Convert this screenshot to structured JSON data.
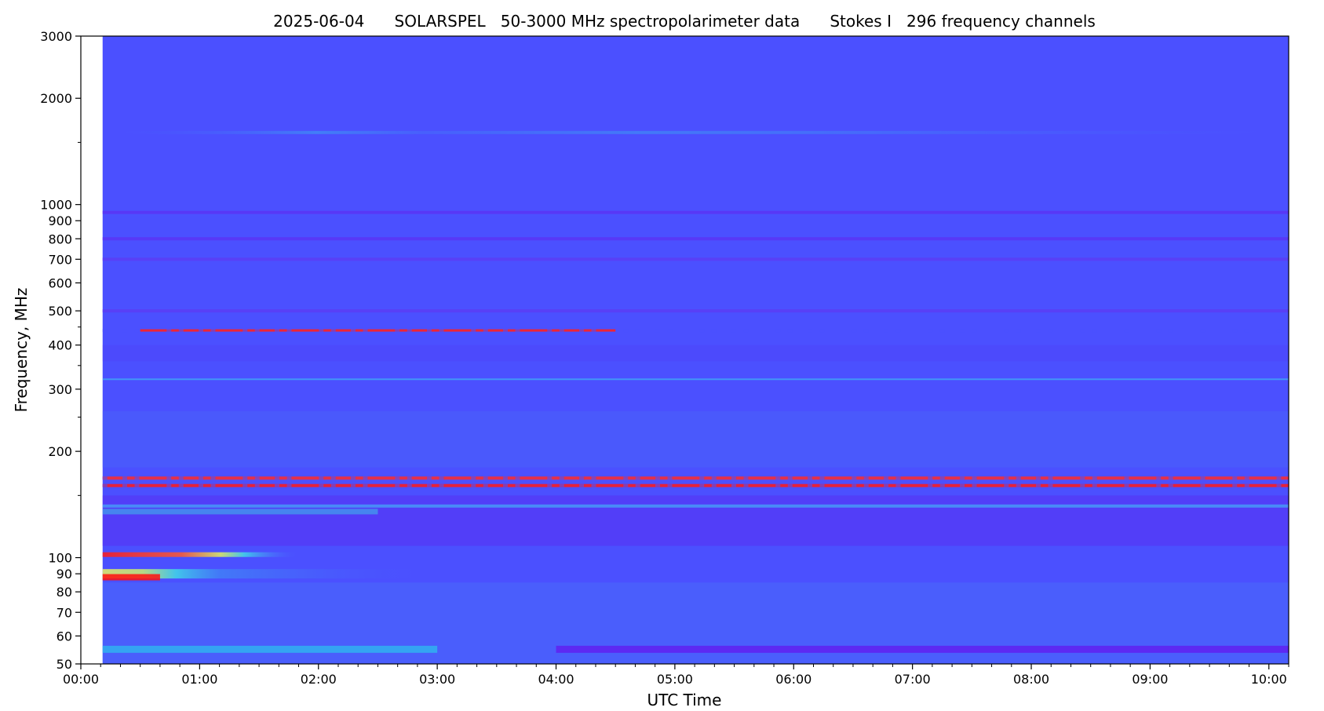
{
  "chart_data": {
    "type": "heatmap",
    "title": "2025-06-04      SOLARSPEL   50-3000 MHz spectropolarimeter data      Stokes I   296 frequency channels",
    "xlabel": "UTC Time",
    "ylabel": "Frequency, MHz",
    "x_range": [
      "00:00",
      "10:10"
    ],
    "y_range": [
      50,
      3000
    ],
    "y_scale": "log",
    "x_ticks": [
      "00:00",
      "01:00",
      "02:00",
      "03:00",
      "04:00",
      "05:00",
      "06:00",
      "07:00",
      "08:00",
      "09:00",
      "10:00"
    ],
    "y_ticks": [
      50,
      60,
      70,
      80,
      90,
      100,
      200,
      300,
      400,
      500,
      600,
      700,
      800,
      900,
      1000,
      2000,
      3000
    ],
    "y_tick_labels": [
      "50",
      "60",
      "70",
      "80",
      "90",
      "100",
      "200",
      "300",
      "400",
      "500",
      "600",
      "700",
      "800",
      "900",
      "1000",
      "2000",
      "3000"
    ],
    "y_minor_ticks": [
      150,
      250,
      350,
      450,
      1500
    ],
    "data_start": "00:11",
    "colormap": "rainbow",
    "background_color": "#4b50ff",
    "band_features": [
      {
        "freq": 1600,
        "start": "00:11",
        "end": "10:10",
        "color": "#3f8cf5"
      },
      {
        "freq": 950,
        "start": "00:11",
        "end": "10:10",
        "color": "#5a34f5"
      },
      {
        "freq": 800,
        "start": "00:11",
        "end": "10:10",
        "color": "#5a34f5"
      },
      {
        "freq": 700,
        "start": "00:11",
        "end": "10:10",
        "color": "#5a3df5"
      },
      {
        "freq": 500,
        "start": "00:11",
        "end": "10:10",
        "color": "#5a3df5"
      },
      {
        "freq": 440,
        "start": "00:30",
        "end": "04:30",
        "color": "#ff2020"
      },
      {
        "freq": 320,
        "start": "00:11",
        "end": "10:10",
        "color": "#3ad0f0"
      },
      {
        "freq": 168,
        "start": "00:11",
        "end": "10:10",
        "color": "#ff2a2a"
      },
      {
        "freq": 160,
        "start": "00:11",
        "end": "10:10",
        "color": "#ff1a1a"
      },
      {
        "freq": 140,
        "start": "00:11",
        "end": "10:10",
        "color": "#40c8f5"
      },
      {
        "freq": 135,
        "start": "00:11",
        "end": "02:30",
        "color": "#3cc0e8"
      },
      {
        "freq": 102,
        "start": "00:11",
        "end": "03:30",
        "color": "#ff1a1a"
      },
      {
        "freq": 90,
        "start": "00:11",
        "end": "03:00",
        "color": "#e8f060"
      },
      {
        "freq": 88,
        "start": "00:11",
        "end": "00:40",
        "color": "#ff1010"
      },
      {
        "freq": 55,
        "start": "00:11",
        "end": "03:00",
        "color": "#30b0f0"
      },
      {
        "freq": 55,
        "start": "04:00",
        "end": "10:10",
        "color": "#6020f0"
      }
    ]
  }
}
